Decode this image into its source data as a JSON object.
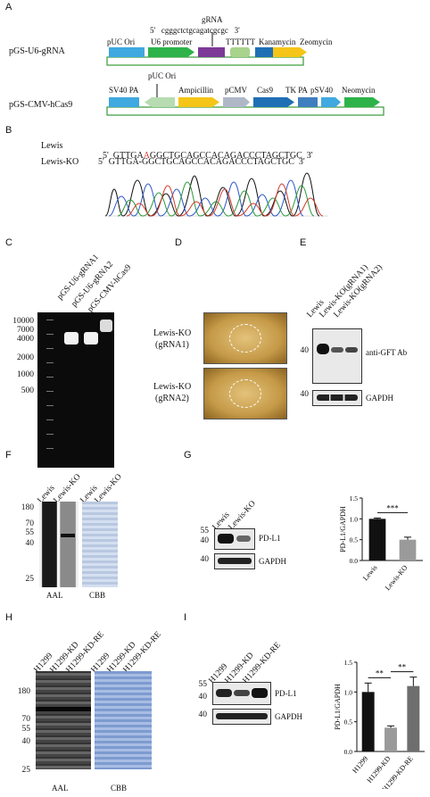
{
  "panels": {
    "A": "A",
    "B": "B",
    "C": "C",
    "D": "D",
    "E": "E",
    "F": "F",
    "G": "G",
    "H": "H",
    "I": "I"
  },
  "panelA": {
    "plasmid1_name": "pGS-U6-gRNA",
    "plasmid2_name": "pGS-CMV-hCas9",
    "grna_label": "gRNA",
    "grna_seq": "5'   cgggctctgcagatcgcgc   3'",
    "p1_features": [
      "pUC Ori",
      "U6 promoter",
      "TTTTTT",
      "Kanamycin",
      "Zeomycin"
    ],
    "p2_features": [
      "SV40 PA",
      "pUC Ori",
      "Ampicillin",
      "pCMV",
      "Cas9",
      "TK PA",
      "pSV40",
      "Neomycin"
    ],
    "colors": {
      "cyan": "#3fa9e0",
      "green": "#2db34a",
      "purple": "#7d3a96",
      "lightgreen": "#a8d38d",
      "blue": "#1f6fb5",
      "yellow": "#f5c518",
      "lightgray": "#b0b8c8",
      "paleGreen": "#b7dcb1",
      "outline": "#3a9a3a"
    }
  },
  "panelB": {
    "row1_label": "Lewis",
    "row1_prefix": "5'  GTTGA",
    "row1_highlight": "A",
    "row1_suffix": "GGCTGCAGCCACAGACCCTAGCTGC  3'",
    "row2_label": "Lewis-KO",
    "row2_seq": "5'  GTTGA-GGCTGCAGCCACAGACCCTAGCTGC  3'",
    "highlight_color": "#d0342c"
  },
  "panelC": {
    "lanes": [
      "pGS-U6-gRNA1",
      "pGS-U6-gRNA2",
      "pGS-CMV-hCas9"
    ],
    "markers": [
      "10000",
      "7000",
      "4000",
      "2000",
      "1000",
      "500"
    ]
  },
  "panelD": {
    "row1": [
      "Lewis-KO",
      "(gRNA1)"
    ],
    "row2": [
      "Lewis-KO",
      "(gRNA2)"
    ]
  },
  "panelE": {
    "lanes": [
      "Lewis",
      "Lewis-KO(gRNA1)",
      "Lewis-KO(gRNA2)"
    ],
    "mw1": "40",
    "mw2": "40",
    "ab1": "anti-GFT Ab",
    "ab2": "GAPDH"
  },
  "panelF": {
    "lanes_aal": [
      "Lewis",
      "Lewis-KO"
    ],
    "lanes_cbb": [
      "Lewis",
      "Lewis-KO"
    ],
    "markers": [
      "180",
      "70",
      "55",
      "40",
      "25"
    ],
    "stain1": "AAL",
    "stain2": "CBB"
  },
  "panelG": {
    "lanes": [
      "Lewis",
      "Lewis-KO"
    ],
    "mw": [
      "55",
      "40",
      "40"
    ],
    "band1": "PD-L1",
    "band2": "GAPDH",
    "ylabel": "PD-L1/GAPDH",
    "sig": "***",
    "chart_data": {
      "type": "bar",
      "categories": [
        "Lewis",
        "Lewis-KO"
      ],
      "values": [
        1.0,
        0.5
      ],
      "errors": [
        0.02,
        0.06
      ],
      "colors": [
        "#111111",
        "#9a9a9a"
      ],
      "yticks": [
        "0.0",
        "0.5",
        "1.0",
        "1.5"
      ],
      "ylim": [
        0,
        1.5
      ],
      "ylabel": "PD-L1/GAPDH"
    }
  },
  "panelH": {
    "lanes_aal": [
      "H1299",
      "H1299-KD",
      "H1299-KD-RE"
    ],
    "lanes_cbb": [
      "H1299",
      "H1299-KD",
      "H1299-KD-RE"
    ],
    "markers": [
      "180",
      "70",
      "55",
      "40",
      "25"
    ],
    "stain1": "AAL",
    "stain2": "CBB"
  },
  "panelI": {
    "lanes": [
      "H1299",
      "H1299-KD",
      "H1299-KD-RE"
    ],
    "mw": [
      "55",
      "40",
      "40"
    ],
    "band1": "PD-L1",
    "band2": "GAPDH",
    "ylabel": "PD-L1/GAPDH",
    "sig1": "**",
    "sig2": "**",
    "chart_data": {
      "type": "bar",
      "categories": [
        "H1299",
        "H1299-KD",
        "H1299-KD-RE"
      ],
      "values": [
        1.0,
        0.4,
        1.1
      ],
      "errors": [
        0.15,
        0.03,
        0.15
      ],
      "colors": [
        "#111111",
        "#9a9a9a",
        "#6e6e6e"
      ],
      "yticks": [
        "0.0",
        "0.5",
        "1.0",
        "1.5"
      ],
      "ylim": [
        0,
        1.5
      ],
      "ylabel": "PD-L1/GAPDH"
    }
  }
}
